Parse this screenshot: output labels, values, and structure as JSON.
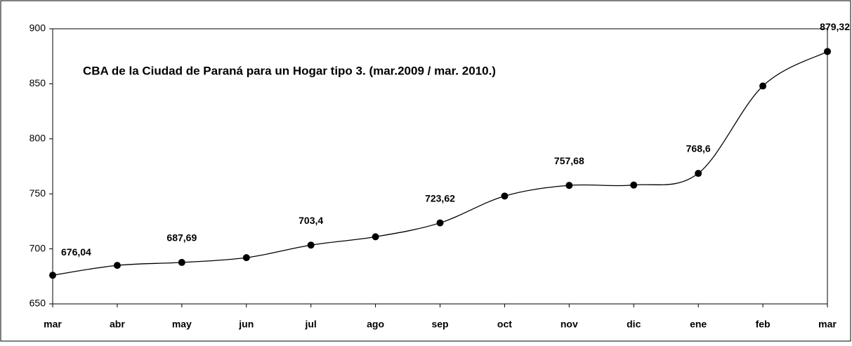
{
  "chart_data": {
    "type": "line",
    "title": "CBA de la Ciudad de Paraná para un Hogar tipo 3. (mar.2009 / mar. 2010.)",
    "categories": [
      "mar",
      "abr",
      "may",
      "jun",
      "jul",
      "ago",
      "sep",
      "oct",
      "nov",
      "dic",
      "ene",
      "feb",
      "mar"
    ],
    "series": [
      {
        "name": "CBA",
        "color": "#000000",
        "values": [
          676.04,
          685,
          687.69,
          692,
          703.4,
          711,
          723.62,
          748,
          757.68,
          758,
          768.6,
          848,
          879.32
        ],
        "value_labels": [
          "676,04",
          null,
          "687,69",
          null,
          "703,4",
          null,
          "723,62",
          null,
          "757,68",
          null,
          "768,6",
          null,
          "879,32"
        ]
      }
    ],
    "ylim": [
      650,
      900
    ],
    "yticks": [
      650,
      700,
      750,
      800,
      850,
      900
    ],
    "smooth": true
  }
}
